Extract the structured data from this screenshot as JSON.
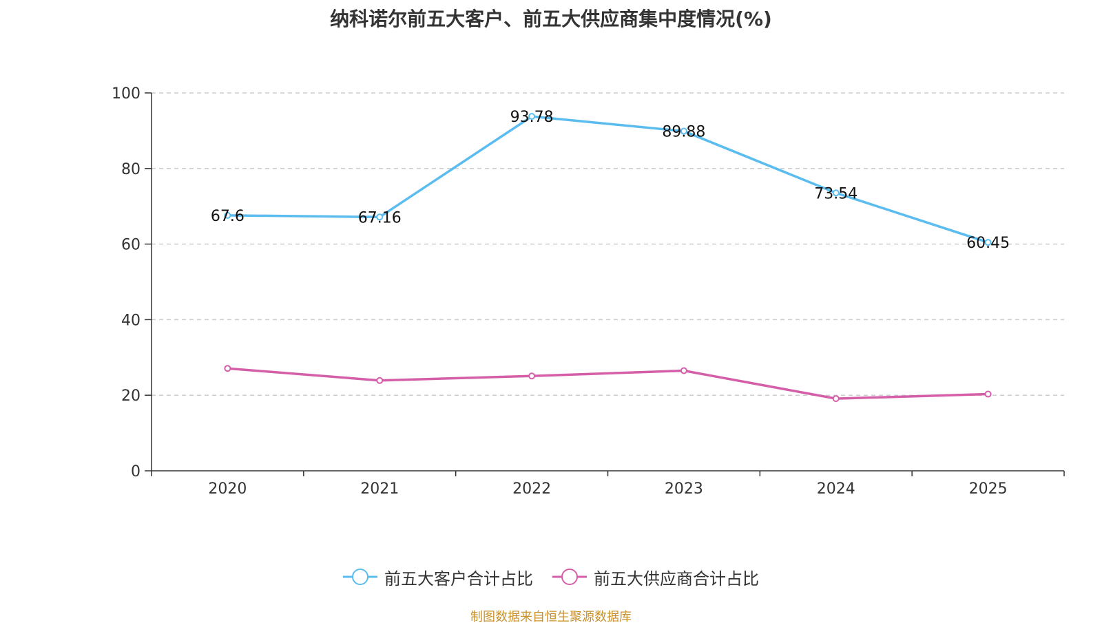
{
  "chart_data": {
    "type": "line",
    "title": "纳科诺尔前五大客户、前五大供应商集中度情况(%)",
    "categories": [
      "2020",
      "2021",
      "2022",
      "2023",
      "2024",
      "2025"
    ],
    "ylim": [
      0,
      100
    ],
    "yticks": [
      0,
      20,
      40,
      60,
      80,
      100
    ],
    "grid": true,
    "legend_position": "bottom",
    "series": [
      {
        "name": "前五大客户合计占比",
        "color": "#5bbcef",
        "values": [
          67.6,
          67.16,
          93.78,
          89.88,
          73.54,
          60.45
        ],
        "labels": [
          "67.6",
          "67.16",
          "93.78",
          "89.88",
          "73.54",
          "60.45"
        ]
      },
      {
        "name": "前五大供应商合计占比",
        "color": "#d45fa8",
        "values": [
          27.1,
          23.9,
          25.1,
          26.5,
          19.1,
          20.3
        ],
        "labels": []
      }
    ]
  },
  "source_note": "制图数据来自恒生聚源数据库"
}
